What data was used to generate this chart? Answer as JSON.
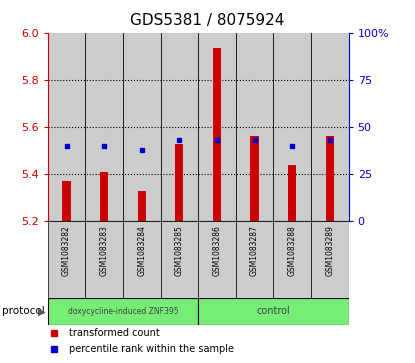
{
  "title": "GDS5381 / 8075924",
  "samples": [
    "GSM1083282",
    "GSM1083283",
    "GSM1083284",
    "GSM1083285",
    "GSM1083286",
    "GSM1083287",
    "GSM1083288",
    "GSM1083289"
  ],
  "red_bar_tops": [
    5.37,
    5.41,
    5.33,
    5.53,
    5.935,
    5.56,
    5.44,
    5.56
  ],
  "red_bar_bottom": 5.2,
  "blue_values": [
    40,
    40,
    38,
    43,
    43,
    43,
    40,
    43
  ],
  "ylim_left": [
    5.2,
    6.0
  ],
  "ylim_right": [
    0,
    100
  ],
  "yticks_left": [
    5.2,
    5.4,
    5.6,
    5.8,
    6.0
  ],
  "yticks_right": [
    0,
    25,
    50,
    75,
    100
  ],
  "ytick_labels_right": [
    "0",
    "25",
    "50",
    "75",
    "100%"
  ],
  "groups": [
    {
      "label": "doxycycline-induced ZNF395",
      "n_samples": 4,
      "color": "#76ee76"
    },
    {
      "label": "control",
      "n_samples": 4,
      "color": "#76ee76"
    }
  ],
  "protocol_label": "protocol",
  "legend": [
    {
      "color": "#cc0000",
      "label": "transformed count"
    },
    {
      "color": "#0000cc",
      "label": "percentile rank within the sample"
    }
  ],
  "bar_color": "#cc0000",
  "blue_color": "#0000cc",
  "bg_color": "#cccccc",
  "left_axis_color": "#cc0000",
  "right_axis_color": "#0000cc",
  "title_fontsize": 11,
  "tick_fontsize": 8,
  "label_fontsize": 5.5,
  "legend_fontsize": 7
}
